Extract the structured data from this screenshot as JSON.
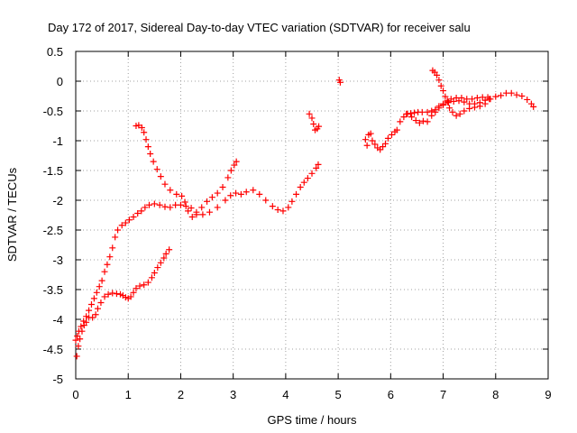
{
  "chart_data": {
    "type": "scatter",
    "title": "Day 172 of 2017, Sidereal Day-to-day VTEC variation (SDTVAR) for receiver salu",
    "xlabel": "GPS time / hours",
    "ylabel": "SDTVAR / TECUs",
    "xlim": [
      0,
      9
    ],
    "ylim": [
      -5,
      0.5
    ],
    "xticks": [
      0,
      1,
      2,
      3,
      4,
      5,
      6,
      7,
      8,
      9
    ],
    "yticks": [
      0.5,
      0,
      -0.5,
      -1,
      -1.5,
      -2,
      -2.5,
      -3,
      -3.5,
      -4,
      -4.5,
      -5
    ],
    "grid": true,
    "marker": "plus",
    "marker_color": "#ff0000",
    "series": [
      {
        "points": [
          [
            0.02,
            -4.62
          ],
          [
            0.05,
            -4.45
          ],
          [
            0.08,
            -4.33
          ],
          [
            0.12,
            -4.2
          ],
          [
            0.16,
            -4.1
          ],
          [
            0.2,
            -4.05
          ],
          [
            0.25,
            -3.97
          ],
          [
            0.32,
            -3.97
          ],
          [
            0.38,
            -3.92
          ],
          [
            0.42,
            -3.82
          ],
          [
            0.48,
            -3.72
          ],
          [
            0.55,
            -3.62
          ],
          [
            0.62,
            -3.58
          ],
          [
            0.7,
            -3.56
          ],
          [
            0.78,
            -3.57
          ],
          [
            0.85,
            -3.58
          ],
          [
            0.9,
            -3.6
          ],
          [
            0.95,
            -3.63
          ],
          [
            1.0,
            -3.65
          ],
          [
            1.05,
            -3.62
          ],
          [
            1.1,
            -3.55
          ],
          [
            1.15,
            -3.48
          ],
          [
            1.22,
            -3.44
          ],
          [
            1.3,
            -3.42
          ],
          [
            1.38,
            -3.38
          ],
          [
            1.45,
            -3.3
          ],
          [
            1.5,
            -3.22
          ],
          [
            1.56,
            -3.13
          ],
          [
            1.62,
            -3.05
          ],
          [
            1.68,
            -2.97
          ],
          [
            1.72,
            -2.9
          ],
          [
            1.78,
            -2.83
          ]
        ]
      },
      {
        "points": [
          [
            0.0,
            -4.35
          ],
          [
            0.03,
            -4.28
          ],
          [
            0.06,
            -4.2
          ],
          [
            0.1,
            -4.12
          ],
          [
            0.15,
            -4.03
          ],
          [
            0.2,
            -3.95
          ],
          [
            0.25,
            -3.85
          ],
          [
            0.3,
            -3.75
          ],
          [
            0.35,
            -3.65
          ],
          [
            0.4,
            -3.55
          ],
          [
            0.45,
            -3.45
          ],
          [
            0.5,
            -3.35
          ],
          [
            0.55,
            -3.2
          ],
          [
            0.6,
            -3.08
          ],
          [
            0.65,
            -2.95
          ],
          [
            0.7,
            -2.8
          ],
          [
            0.75,
            -2.62
          ],
          [
            0.8,
            -2.5
          ],
          [
            0.88,
            -2.42
          ],
          [
            0.95,
            -2.38
          ],
          [
            1.02,
            -2.33
          ],
          [
            1.1,
            -2.28
          ],
          [
            1.18,
            -2.22
          ],
          [
            1.25,
            -2.18
          ],
          [
            1.32,
            -2.12
          ],
          [
            1.4,
            -2.08
          ],
          [
            1.5,
            -2.06
          ],
          [
            1.6,
            -2.08
          ],
          [
            1.7,
            -2.11
          ],
          [
            1.8,
            -2.12
          ],
          [
            1.9,
            -2.08
          ],
          [
            2.0,
            -2.08
          ],
          [
            2.1,
            -2.1
          ],
          [
            2.2,
            -2.13
          ],
          [
            2.3,
            -2.2
          ],
          [
            2.42,
            -2.24
          ],
          [
            2.55,
            -2.2
          ],
          [
            2.7,
            -2.12
          ],
          [
            2.85,
            -2.0
          ],
          [
            2.95,
            -1.92
          ],
          [
            3.05,
            -1.88
          ],
          [
            3.15,
            -1.9
          ],
          [
            3.25,
            -1.86
          ],
          [
            3.38,
            -1.83
          ],
          [
            3.5,
            -1.9
          ],
          [
            3.62,
            -2.0
          ],
          [
            3.75,
            -2.1
          ],
          [
            3.85,
            -2.16
          ],
          [
            3.95,
            -2.18
          ],
          [
            4.05,
            -2.12
          ],
          [
            4.12,
            -2.02
          ],
          [
            4.2,
            -1.9
          ],
          [
            4.28,
            -1.78
          ],
          [
            4.35,
            -1.7
          ],
          [
            4.42,
            -1.63
          ],
          [
            4.5,
            -1.55
          ],
          [
            4.58,
            -1.46
          ],
          [
            4.62,
            -1.4
          ]
        ]
      },
      {
        "points": [
          [
            1.15,
            -0.75
          ],
          [
            1.2,
            -0.74
          ],
          [
            1.26,
            -0.78
          ],
          [
            1.3,
            -0.86
          ],
          [
            1.34,
            -0.98
          ],
          [
            1.38,
            -1.1
          ],
          [
            1.42,
            -1.22
          ],
          [
            1.48,
            -1.35
          ],
          [
            1.55,
            -1.48
          ],
          [
            1.62,
            -1.6
          ],
          [
            1.7,
            -1.73
          ],
          [
            1.8,
            -1.83
          ],
          [
            1.92,
            -1.9
          ],
          [
            2.02,
            -1.93
          ],
          [
            2.08,
            -2.03
          ],
          [
            2.14,
            -2.18
          ],
          [
            2.22,
            -2.28
          ],
          [
            2.3,
            -2.24
          ],
          [
            2.4,
            -2.12
          ],
          [
            2.5,
            -2.02
          ],
          [
            2.6,
            -1.95
          ],
          [
            2.7,
            -1.88
          ],
          [
            2.8,
            -1.78
          ],
          [
            2.9,
            -1.62
          ],
          [
            2.96,
            -1.5
          ],
          [
            3.02,
            -1.41
          ],
          [
            3.06,
            -1.35
          ]
        ]
      },
      {
        "points": [
          [
            4.45,
            -0.55
          ],
          [
            4.5,
            -0.62
          ],
          [
            4.53,
            -0.72
          ],
          [
            4.56,
            -0.82
          ],
          [
            4.6,
            -0.8
          ],
          [
            4.63,
            -0.76
          ],
          [
            5.02,
            0.02
          ],
          [
            5.04,
            -0.02
          ]
        ]
      },
      {
        "points": [
          [
            5.52,
            -0.98
          ],
          [
            5.55,
            -1.08
          ],
          [
            5.58,
            -0.9
          ],
          [
            5.62,
            -0.88
          ],
          [
            5.65,
            -1.0
          ],
          [
            5.7,
            -1.06
          ],
          [
            5.75,
            -1.12
          ],
          [
            5.8,
            -1.15
          ],
          [
            5.85,
            -1.1
          ],
          [
            5.9,
            -1.05
          ],
          [
            5.95,
            -0.96
          ],
          [
            6.02,
            -0.9
          ],
          [
            6.08,
            -0.85
          ],
          [
            6.12,
            -0.82
          ],
          [
            6.18,
            -0.68
          ],
          [
            6.25,
            -0.6
          ],
          [
            6.32,
            -0.55
          ],
          [
            6.4,
            -0.6
          ],
          [
            6.48,
            -0.66
          ],
          [
            6.55,
            -0.7
          ],
          [
            6.62,
            -0.67
          ],
          [
            6.7,
            -0.68
          ],
          [
            6.78,
            -0.58
          ],
          [
            6.85,
            -0.52
          ],
          [
            6.92,
            -0.45
          ],
          [
            7.0,
            -0.4
          ],
          [
            7.1,
            -0.36
          ],
          [
            7.2,
            -0.34
          ],
          [
            7.3,
            -0.33
          ],
          [
            7.4,
            -0.35
          ],
          [
            7.5,
            -0.38
          ],
          [
            7.6,
            -0.38
          ],
          [
            7.7,
            -0.36
          ],
          [
            7.8,
            -0.32
          ],
          [
            7.9,
            -0.3
          ],
          [
            8.0,
            -0.26
          ],
          [
            8.1,
            -0.24
          ],
          [
            8.2,
            -0.2
          ],
          [
            8.3,
            -0.2
          ],
          [
            8.4,
            -0.23
          ],
          [
            8.5,
            -0.25
          ],
          [
            8.6,
            -0.31
          ],
          [
            8.68,
            -0.38
          ],
          [
            8.72,
            -0.43
          ]
        ]
      },
      {
        "points": [
          [
            6.3,
            -0.55
          ],
          [
            6.38,
            -0.54
          ],
          [
            6.45,
            -0.53
          ],
          [
            6.52,
            -0.52
          ],
          [
            6.6,
            -0.52
          ],
          [
            6.7,
            -0.52
          ],
          [
            6.78,
            -0.5
          ],
          [
            6.85,
            -0.48
          ],
          [
            6.92,
            -0.42
          ],
          [
            7.0,
            -0.38
          ],
          [
            7.08,
            -0.33
          ],
          [
            7.15,
            -0.3
          ],
          [
            7.25,
            -0.28
          ],
          [
            7.35,
            -0.28
          ],
          [
            7.45,
            -0.3
          ],
          [
            7.55,
            -0.3
          ],
          [
            7.65,
            -0.28
          ],
          [
            7.75,
            -0.27
          ],
          [
            7.85,
            -0.27
          ]
        ]
      },
      {
        "points": [
          [
            6.8,
            0.18
          ],
          [
            6.84,
            0.15
          ],
          [
            6.88,
            0.1
          ],
          [
            6.92,
            0.02
          ],
          [
            6.96,
            -0.08
          ],
          [
            7.0,
            -0.16
          ],
          [
            7.04,
            -0.26
          ],
          [
            7.08,
            -0.35
          ],
          [
            7.12,
            -0.45
          ],
          [
            7.18,
            -0.52
          ],
          [
            7.25,
            -0.58
          ],
          [
            7.32,
            -0.55
          ],
          [
            7.4,
            -0.5
          ],
          [
            7.5,
            -0.46
          ],
          [
            7.6,
            -0.44
          ],
          [
            7.7,
            -0.42
          ],
          [
            7.8,
            -0.38
          ],
          [
            7.88,
            -0.3
          ]
        ]
      }
    ]
  }
}
